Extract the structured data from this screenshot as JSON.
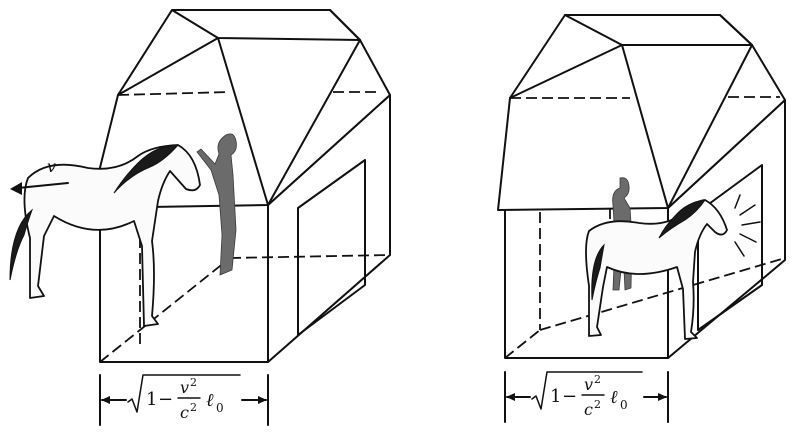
{
  "left_panel": {
    "velocity_label": "v",
    "formula": {
      "one": "1",
      "minus": "−",
      "numerator": "v",
      "num_exp": "2",
      "denominator": "c",
      "den_exp": "2",
      "length_symbol": "ℓ",
      "length_subscript": "0"
    }
  },
  "right_panel": {
    "formula": {
      "one": "1",
      "minus": "−",
      "numerator": "v",
      "num_exp": "2",
      "denominator": "c",
      "den_exp": "2",
      "length_symbol": "ℓ",
      "length_subscript": "0"
    }
  }
}
